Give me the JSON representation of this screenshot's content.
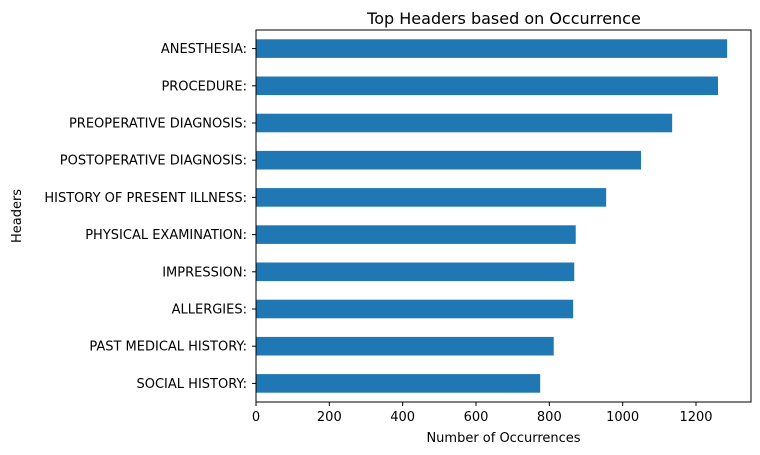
{
  "chart_data": {
    "type": "bar",
    "orientation": "horizontal",
    "title": "Top Headers based on Occurrence",
    "xlabel": "Number of Occurrences",
    "ylabel": "Headers",
    "categories": [
      "ANESTHESIA:",
      "PROCEDURE:",
      "PREOPERATIVE DIAGNOSIS:",
      "POSTOPERATIVE DIAGNOSIS:",
      "HISTORY OF PRESENT ILLNESS:",
      "PHYSICAL EXAMINATION:",
      "IMPRESSION:",
      "ALLERGIES:",
      "PAST MEDICAL HISTORY:",
      "SOCIAL HISTORY:"
    ],
    "values": [
      1285,
      1260,
      1135,
      1050,
      955,
      872,
      868,
      865,
      812,
      775
    ],
    "xlim": [
      0,
      1350
    ],
    "xticks": [
      0,
      200,
      400,
      600,
      800,
      1000,
      1200
    ],
    "bar_color": "#1f77b4",
    "grid": false,
    "legend": "none"
  }
}
